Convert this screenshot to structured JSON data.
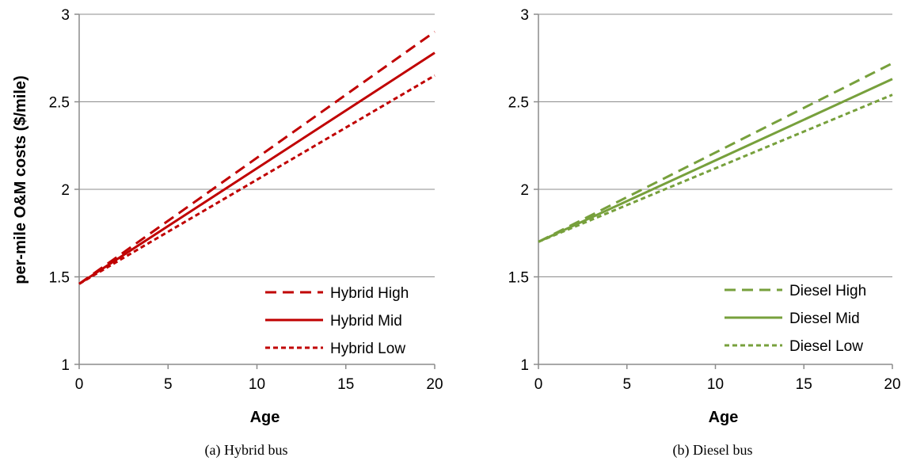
{
  "chart_data": [
    {
      "type": "line",
      "caption": "(a) Hybrid bus",
      "xlabel": "Age",
      "ylabel": "per-mile O&M costs ($/mile)",
      "xlim": [
        0,
        20
      ],
      "ylim": [
        1,
        3
      ],
      "x_ticks": [
        "0",
        "5",
        "10",
        "15",
        "20"
      ],
      "y_ticks": [
        "1",
        "1.5",
        "2",
        "2.5",
        "3"
      ],
      "grid": "horizontal",
      "legend_position": "bottom-right",
      "color": "#C00000",
      "series": [
        {
          "name": "Hybrid High",
          "style": "long-dash",
          "x": [
            0,
            20
          ],
          "y": [
            1.46,
            2.9
          ]
        },
        {
          "name": "Hybrid Mid",
          "style": "solid",
          "x": [
            0,
            20
          ],
          "y": [
            1.46,
            2.78
          ]
        },
        {
          "name": "Hybrid Low",
          "style": "short-dash",
          "x": [
            0,
            20
          ],
          "y": [
            1.46,
            2.65
          ]
        }
      ]
    },
    {
      "type": "line",
      "caption": "(b) Diesel bus",
      "xlabel": "Age",
      "ylabel": "",
      "xlim": [
        0,
        20
      ],
      "ylim": [
        1,
        3
      ],
      "x_ticks": [
        "0",
        "5",
        "10",
        "15",
        "20"
      ],
      "y_ticks": [
        "1",
        "1.5",
        "2",
        "2.5",
        "3"
      ],
      "grid": "horizontal",
      "legend_position": "bottom-right",
      "color": "#77A03C",
      "series": [
        {
          "name": "Diesel High",
          "style": "long-dash",
          "x": [
            0,
            20
          ],
          "y": [
            1.7,
            2.72
          ]
        },
        {
          "name": "Diesel Mid",
          "style": "solid",
          "x": [
            0,
            20
          ],
          "y": [
            1.7,
            2.63
          ]
        },
        {
          "name": "Diesel Low",
          "style": "short-dash",
          "x": [
            0,
            20
          ],
          "y": [
            1.7,
            2.54
          ]
        }
      ]
    }
  ]
}
